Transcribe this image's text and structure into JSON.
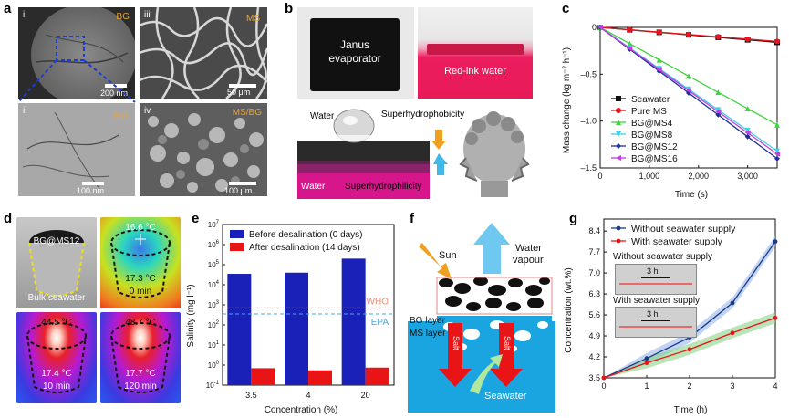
{
  "panels": {
    "a": {
      "label": "a",
      "images": [
        {
          "roman": "i",
          "tag": "BG",
          "scale": "200 nm"
        },
        {
          "roman": "iii",
          "tag": "MS",
          "scale": "50 μm"
        },
        {
          "roman": "ii",
          "tag": "BG",
          "scale": "100 nm"
        },
        {
          "roman": "iv",
          "tag": "MS/BG",
          "scale": "100 μm"
        }
      ]
    },
    "b": {
      "label": "b",
      "evaporator_label": "Janus\nevaporator",
      "evaporator_line1": "Janus",
      "evaporator_line2": "evaporator",
      "redink_label": "Red-ink water",
      "water_drop_label": "Water",
      "superhydrophobicity": "Superhydrophobicity",
      "water_bottom_label": "Water",
      "superhydrophilicity": "Superhydrophilicity"
    },
    "c": {
      "label": "c",
      "ylabel": "Mass change (kg m⁻² h⁻¹)",
      "xlabel": "Time (s)"
    },
    "d": {
      "label": "d",
      "sample_label": "BG@MS12",
      "bulk_label": "Bulk seawater",
      "thermal": [
        {
          "top_temp": "16.6 °C",
          "temp": "17.3 °C",
          "time": "0 min"
        },
        {
          "top_temp": "44.5 °C",
          "temp": "17.4 °C",
          "time": "10 min"
        },
        {
          "top_temp": "48.7 °C",
          "temp": "17.7 °C",
          "time": "120 min"
        }
      ]
    },
    "e": {
      "label": "e",
      "ylabel": "Salinity (mg l⁻¹)",
      "xlabel": "Concentration (%)"
    },
    "f": {
      "label": "f",
      "sun": "Sun",
      "vapour_line1": "Water",
      "vapour_line2": "vapour",
      "bg_layer": "BG layer",
      "ms_layer": "MS layer",
      "salt": "Salt",
      "seawater": "Seawater"
    },
    "g": {
      "label": "g",
      "ylabel": "Concentration (wt.%)",
      "xlabel": "Time (h)",
      "inset_top_label": "Without seawater supply",
      "inset_bottom_label": "With seawater supply",
      "inset_time": "3 h"
    }
  },
  "colors": {
    "seawater": "#111111",
    "pure_ms": "#e8141e",
    "bg_ms4": "#3fd33f",
    "bg_ms8": "#3fd0e8",
    "bg_ms12": "#1f2f9e",
    "bg_ms16": "#c43ce0",
    "before": "#1a21b8",
    "after": "#e81416",
    "who": "#f08a6a",
    "epa": "#4aa8e8"
  },
  "chart_data": [
    {
      "id": "c",
      "type": "line",
      "xlabel": "Time (s)",
      "ylabel": "Mass change (kg m⁻² h⁻¹)",
      "xlim": [
        0,
        3600
      ],
      "ylim": [
        -1.5,
        0
      ],
      "xticks": [
        0,
        1000,
        2000,
        3000
      ],
      "yticks": [
        0,
        -0.5,
        -1.0,
        -1.5
      ],
      "ytick_labels": [
        "0",
        "–0.5",
        "–1.0",
        "–1.5"
      ],
      "x": [
        0,
        300,
        600,
        900,
        1200,
        1500,
        1800,
        2100,
        2400,
        2700,
        3000,
        3300,
        3600
      ],
      "legend_position": "center-right",
      "series": [
        {
          "name": "Seawater",
          "color_key": "seawater",
          "marker": "square",
          "values": [
            0,
            -0.013,
            -0.026,
            -0.04,
            -0.053,
            -0.066,
            -0.08,
            -0.093,
            -0.106,
            -0.12,
            -0.133,
            -0.146,
            -0.16
          ]
        },
        {
          "name": "Pure MS",
          "color_key": "pure_ms",
          "marker": "circle",
          "values": [
            0,
            -0.012,
            -0.025,
            -0.038,
            -0.05,
            -0.063,
            -0.075,
            -0.088,
            -0.1,
            -0.113,
            -0.125,
            -0.138,
            -0.15
          ]
        },
        {
          "name": "BG@MS4",
          "color_key": "bg_ms4",
          "marker": "triangle-up",
          "values": [
            0,
            -0.087,
            -0.173,
            -0.26,
            -0.347,
            -0.433,
            -0.52,
            -0.607,
            -0.693,
            -0.78,
            -0.867,
            -0.953,
            -1.04
          ]
        },
        {
          "name": "BG@MS8",
          "color_key": "bg_ms8",
          "marker": "triangle-down",
          "values": [
            0,
            -0.11,
            -0.22,
            -0.33,
            -0.44,
            -0.55,
            -0.66,
            -0.77,
            -0.88,
            -0.99,
            -1.1,
            -1.21,
            -1.32
          ]
        },
        {
          "name": "BG@MS12",
          "color_key": "bg_ms12",
          "marker": "diamond",
          "values": [
            0,
            -0.117,
            -0.233,
            -0.35,
            -0.467,
            -0.583,
            -0.7,
            -0.817,
            -0.933,
            -1.05,
            -1.167,
            -1.283,
            -1.4
          ]
        },
        {
          "name": "BG@MS16",
          "color_key": "bg_ms16",
          "marker": "triangle-left",
          "values": [
            0,
            -0.113,
            -0.225,
            -0.338,
            -0.45,
            -0.563,
            -0.675,
            -0.788,
            -0.9,
            -1.013,
            -1.125,
            -1.238,
            -1.35
          ]
        }
      ]
    },
    {
      "id": "e",
      "type": "bar",
      "xlabel": "Concentration (%)",
      "ylabel": "Salinity (mg l⁻¹)",
      "yscale": "log",
      "ylim": [
        0.1,
        10000000
      ],
      "ytick_exponents": [
        -1,
        0,
        1,
        2,
        3,
        4,
        5,
        6,
        7
      ],
      "categories": [
        "3.5",
        "4",
        "20"
      ],
      "legend_position": "top",
      "series": [
        {
          "name": "Before desalination (0 days)",
          "color_key": "before",
          "values": [
            35000,
            40000,
            200000
          ]
        },
        {
          "name": "After desalination (14 days)",
          "color_key": "after",
          "values": [
            0.7,
            0.55,
            0.75
          ]
        }
      ],
      "reference_lines": [
        {
          "name": "WHO",
          "value": 700,
          "color_key": "who"
        },
        {
          "name": "EPA",
          "value": 350,
          "color_key": "epa"
        }
      ]
    },
    {
      "id": "g",
      "type": "line",
      "xlabel": "Time (h)",
      "ylabel": "Concentration (wt.%)",
      "xlim": [
        0,
        4
      ],
      "ylim": [
        3.5,
        8.8
      ],
      "xticks": [
        0,
        1,
        2,
        3,
        4
      ],
      "yticks": [
        3.5,
        4.2,
        4.9,
        5.6,
        6.3,
        7.0,
        7.7,
        8.4
      ],
      "x": [
        0,
        1,
        2,
        3,
        4
      ],
      "legend_position": "top-left",
      "series": [
        {
          "name": "Without seawater supply",
          "color": "#1a3a8a",
          "band": "#8fb0e8",
          "values": [
            3.5,
            4.15,
            4.85,
            6.0,
            8.05
          ]
        },
        {
          "name": "With seawater supply",
          "color": "#e81416",
          "band": "#7fd07f",
          "values": [
            3.5,
            4.0,
            4.45,
            5.0,
            5.5
          ]
        }
      ]
    }
  ]
}
